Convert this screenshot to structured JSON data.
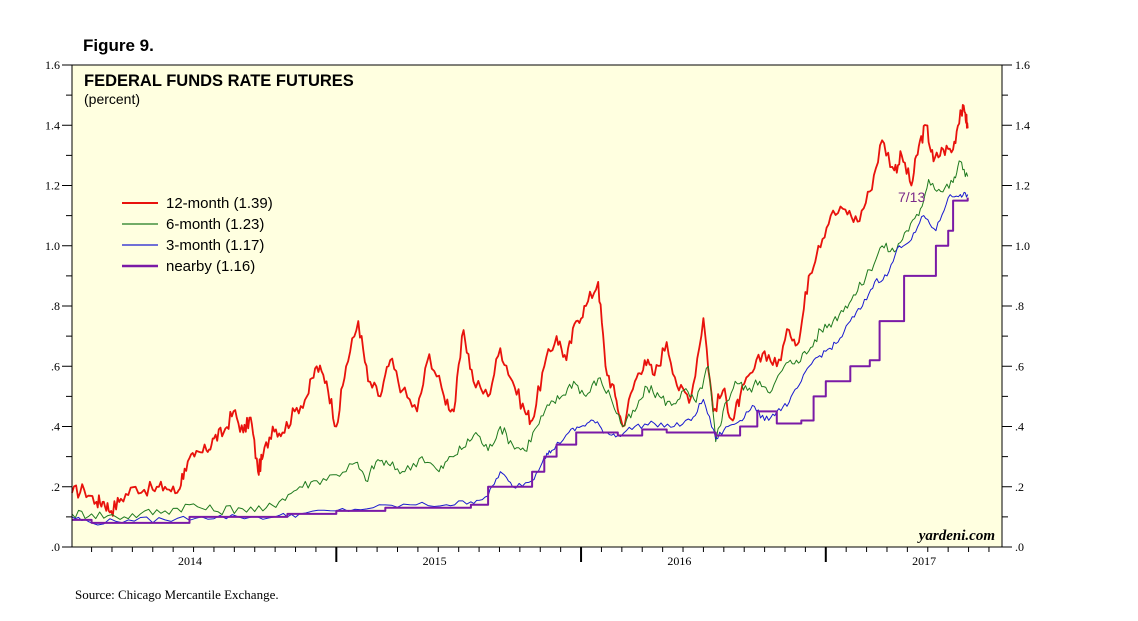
{
  "figure_label": "Figure 9.",
  "source": "Source: Chicago Mercantile Exchange.",
  "chart_data": {
    "type": "line",
    "title": "FEDERAL FUNDS RATE FUTURES",
    "subtitle": "(percent)",
    "xlabel": "",
    "ylabel": "percent",
    "xlim": [
      2013.92,
      2017.72
    ],
    "ylim": [
      0,
      1.6
    ],
    "x_tick_labels": [
      "2014",
      "2015",
      "2016",
      "2017"
    ],
    "x_tick_positions": [
      2014.5,
      2015.5,
      2016.5,
      2017.5
    ],
    "y_ticks": [
      0,
      0.2,
      0.4,
      0.6,
      0.8,
      1.0,
      1.2,
      1.4,
      1.6
    ],
    "y_tick_labels": [
      ".0",
      ".2",
      ".4",
      ".6",
      ".8",
      "1.0",
      "1.2",
      "1.4",
      "1.6"
    ],
    "plot_background": "#ffffe0",
    "watermark": "yardeni.com",
    "end_annotation": {
      "text": "7/13",
      "color": "#7a2a8a"
    },
    "legend_position": "upper-left",
    "series": [
      {
        "name": "12-month (1.39)",
        "color": "#e8120c",
        "points": [
          [
            2013.92,
            0.18
          ],
          [
            2013.97,
            0.19
          ],
          [
            2014.02,
            0.15
          ],
          [
            2014.05,
            0.15
          ],
          [
            2014.08,
            0.12
          ],
          [
            2014.12,
            0.16
          ],
          [
            2014.18,
            0.2
          ],
          [
            2014.25,
            0.19
          ],
          [
            2014.3,
            0.2
          ],
          [
            2014.35,
            0.18
          ],
          [
            2014.38,
            0.26
          ],
          [
            2014.42,
            0.3
          ],
          [
            2014.47,
            0.32
          ],
          [
            2014.5,
            0.36
          ],
          [
            2014.54,
            0.38
          ],
          [
            2014.58,
            0.45
          ],
          [
            2014.62,
            0.38
          ],
          [
            2014.65,
            0.43
          ],
          [
            2014.68,
            0.25
          ],
          [
            2014.7,
            0.3
          ],
          [
            2014.74,
            0.4
          ],
          [
            2014.78,
            0.38
          ],
          [
            2014.83,
            0.45
          ],
          [
            2014.88,
            0.5
          ],
          [
            2014.92,
            0.6
          ],
          [
            2014.96,
            0.55
          ],
          [
            2015.0,
            0.4
          ],
          [
            2015.04,
            0.6
          ],
          [
            2015.09,
            0.75
          ],
          [
            2015.13,
            0.55
          ],
          [
            2015.18,
            0.5
          ],
          [
            2015.22,
            0.62
          ],
          [
            2015.27,
            0.52
          ],
          [
            2015.33,
            0.45
          ],
          [
            2015.38,
            0.64
          ],
          [
            2015.44,
            0.5
          ],
          [
            2015.48,
            0.45
          ],
          [
            2015.52,
            0.72
          ],
          [
            2015.56,
            0.55
          ],
          [
            2015.62,
            0.5
          ],
          [
            2015.67,
            0.66
          ],
          [
            2015.72,
            0.55
          ],
          [
            2015.77,
            0.45
          ],
          [
            2015.8,
            0.42
          ],
          [
            2015.85,
            0.6
          ],
          [
            2015.9,
            0.7
          ],
          [
            2015.94,
            0.62
          ],
          [
            2015.98,
            0.75
          ],
          [
            2016.02,
            0.8
          ],
          [
            2016.07,
            0.88
          ],
          [
            2016.1,
            0.6
          ],
          [
            2016.14,
            0.5
          ],
          [
            2016.17,
            0.4
          ],
          [
            2016.22,
            0.55
          ],
          [
            2016.26,
            0.62
          ],
          [
            2016.3,
            0.57
          ],
          [
            2016.35,
            0.68
          ],
          [
            2016.4,
            0.52
          ],
          [
            2016.45,
            0.5
          ],
          [
            2016.5,
            0.76
          ],
          [
            2016.54,
            0.45
          ],
          [
            2016.58,
            0.52
          ],
          [
            2016.62,
            0.42
          ],
          [
            2016.65,
            0.5
          ],
          [
            2016.7,
            0.58
          ],
          [
            2016.75,
            0.65
          ],
          [
            2016.8,
            0.6
          ],
          [
            2016.85,
            0.72
          ],
          [
            2016.89,
            0.68
          ],
          [
            2016.93,
            0.9
          ],
          [
            2016.97,
            1.0
          ],
          [
            2017.02,
            1.1
          ],
          [
            2017.08,
            1.12
          ],
          [
            2017.13,
            1.08
          ],
          [
            2017.18,
            1.18
          ],
          [
            2017.23,
            1.35
          ],
          [
            2017.28,
            1.25
          ],
          [
            2017.31,
            1.3
          ],
          [
            2017.35,
            1.2
          ],
          [
            2017.38,
            1.33
          ],
          [
            2017.41,
            1.4
          ],
          [
            2017.44,
            1.28
          ],
          [
            2017.48,
            1.32
          ],
          [
            2017.52,
            1.32
          ],
          [
            2017.55,
            1.45
          ],
          [
            2017.57,
            1.44
          ],
          [
            2017.58,
            1.39
          ]
        ]
      },
      {
        "name": "6-month (1.23)",
        "color": "#1f7a1f",
        "points": [
          [
            2013.92,
            0.11
          ],
          [
            2014.0,
            0.11
          ],
          [
            2014.1,
            0.1
          ],
          [
            2014.2,
            0.11
          ],
          [
            2014.3,
            0.12
          ],
          [
            2014.4,
            0.14
          ],
          [
            2014.5,
            0.12
          ],
          [
            2014.6,
            0.13
          ],
          [
            2014.7,
            0.12
          ],
          [
            2014.78,
            0.16
          ],
          [
            2014.85,
            0.2
          ],
          [
            2014.92,
            0.22
          ],
          [
            2015.0,
            0.24
          ],
          [
            2015.08,
            0.28
          ],
          [
            2015.12,
            0.22
          ],
          [
            2015.17,
            0.29
          ],
          [
            2015.22,
            0.27
          ],
          [
            2015.28,
            0.25
          ],
          [
            2015.35,
            0.3
          ],
          [
            2015.42,
            0.25
          ],
          [
            2015.47,
            0.3
          ],
          [
            2015.52,
            0.33
          ],
          [
            2015.57,
            0.38
          ],
          [
            2015.62,
            0.32
          ],
          [
            2015.67,
            0.4
          ],
          [
            2015.72,
            0.34
          ],
          [
            2015.77,
            0.32
          ],
          [
            2015.82,
            0.4
          ],
          [
            2015.87,
            0.47
          ],
          [
            2015.92,
            0.5
          ],
          [
            2015.97,
            0.55
          ],
          [
            2016.02,
            0.5
          ],
          [
            2016.07,
            0.56
          ],
          [
            2016.12,
            0.5
          ],
          [
            2016.17,
            0.4
          ],
          [
            2016.22,
            0.45
          ],
          [
            2016.27,
            0.53
          ],
          [
            2016.32,
            0.5
          ],
          [
            2016.37,
            0.47
          ],
          [
            2016.42,
            0.52
          ],
          [
            2016.47,
            0.48
          ],
          [
            2016.52,
            0.6
          ],
          [
            2016.55,
            0.35
          ],
          [
            2016.58,
            0.45
          ],
          [
            2016.63,
            0.55
          ],
          [
            2016.68,
            0.52
          ],
          [
            2016.73,
            0.55
          ],
          [
            2016.78,
            0.52
          ],
          [
            2016.83,
            0.6
          ],
          [
            2016.88,
            0.62
          ],
          [
            2016.93,
            0.65
          ],
          [
            2016.98,
            0.72
          ],
          [
            2017.03,
            0.75
          ],
          [
            2017.08,
            0.8
          ],
          [
            2017.13,
            0.85
          ],
          [
            2017.18,
            0.92
          ],
          [
            2017.23,
            1.0
          ],
          [
            2017.28,
            0.98
          ],
          [
            2017.33,
            1.05
          ],
          [
            2017.38,
            1.1
          ],
          [
            2017.42,
            1.22
          ],
          [
            2017.47,
            1.18
          ],
          [
            2017.52,
            1.21
          ],
          [
            2017.55,
            1.28
          ],
          [
            2017.58,
            1.23
          ]
        ]
      },
      {
        "name": "3-month (1.17)",
        "color": "#1a1ad0",
        "points": [
          [
            2013.92,
            0.1
          ],
          [
            2014.0,
            0.08
          ],
          [
            2014.15,
            0.09
          ],
          [
            2014.3,
            0.09
          ],
          [
            2014.45,
            0.1
          ],
          [
            2014.6,
            0.1
          ],
          [
            2014.75,
            0.1
          ],
          [
            2014.85,
            0.11
          ],
          [
            2015.0,
            0.12
          ],
          [
            2015.15,
            0.13
          ],
          [
            2015.3,
            0.14
          ],
          [
            2015.45,
            0.14
          ],
          [
            2015.55,
            0.15
          ],
          [
            2015.62,
            0.17
          ],
          [
            2015.67,
            0.25
          ],
          [
            2015.72,
            0.2
          ],
          [
            2015.8,
            0.22
          ],
          [
            2015.85,
            0.3
          ],
          [
            2015.88,
            0.32
          ],
          [
            2015.95,
            0.38
          ],
          [
            2016.0,
            0.4
          ],
          [
            2016.05,
            0.42
          ],
          [
            2016.1,
            0.38
          ],
          [
            2016.15,
            0.37
          ],
          [
            2016.22,
            0.4
          ],
          [
            2016.3,
            0.41
          ],
          [
            2016.38,
            0.4
          ],
          [
            2016.45,
            0.42
          ],
          [
            2016.5,
            0.49
          ],
          [
            2016.55,
            0.36
          ],
          [
            2016.6,
            0.4
          ],
          [
            2016.65,
            0.42
          ],
          [
            2016.7,
            0.47
          ],
          [
            2016.75,
            0.42
          ],
          [
            2016.8,
            0.45
          ],
          [
            2016.85,
            0.48
          ],
          [
            2016.9,
            0.55
          ],
          [
            2016.95,
            0.62
          ],
          [
            2017.0,
            0.65
          ],
          [
            2017.05,
            0.68
          ],
          [
            2017.1,
            0.75
          ],
          [
            2017.15,
            0.8
          ],
          [
            2017.2,
            0.88
          ],
          [
            2017.25,
            0.9
          ],
          [
            2017.3,
            1.0
          ],
          [
            2017.35,
            1.02
          ],
          [
            2017.4,
            1.1
          ],
          [
            2017.45,
            1.05
          ],
          [
            2017.5,
            1.16
          ],
          [
            2017.55,
            1.17
          ],
          [
            2017.58,
            1.17
          ]
        ]
      },
      {
        "name": "nearby (1.16)",
        "color": "#7a1aa6",
        "points": [
          [
            2013.92,
            0.09
          ],
          [
            2014.0,
            0.08
          ],
          [
            2014.2,
            0.08
          ],
          [
            2014.4,
            0.1
          ],
          [
            2014.6,
            0.1
          ],
          [
            2014.8,
            0.11
          ],
          [
            2015.0,
            0.12
          ],
          [
            2015.2,
            0.13
          ],
          [
            2015.4,
            0.13
          ],
          [
            2015.55,
            0.14
          ],
          [
            2015.62,
            0.2
          ],
          [
            2015.72,
            0.2
          ],
          [
            2015.8,
            0.25
          ],
          [
            2015.85,
            0.3
          ],
          [
            2015.9,
            0.34
          ],
          [
            2015.98,
            0.38
          ],
          [
            2016.05,
            0.38
          ],
          [
            2016.15,
            0.37
          ],
          [
            2016.25,
            0.39
          ],
          [
            2016.35,
            0.38
          ],
          [
            2016.45,
            0.38
          ],
          [
            2016.55,
            0.37
          ],
          [
            2016.65,
            0.4
          ],
          [
            2016.72,
            0.45
          ],
          [
            2016.8,
            0.41
          ],
          [
            2016.9,
            0.42
          ],
          [
            2016.95,
            0.5
          ],
          [
            2017.0,
            0.55
          ],
          [
            2017.05,
            0.55
          ],
          [
            2017.1,
            0.6
          ],
          [
            2017.18,
            0.62
          ],
          [
            2017.22,
            0.75
          ],
          [
            2017.3,
            0.75
          ],
          [
            2017.32,
            0.9
          ],
          [
            2017.4,
            0.9
          ],
          [
            2017.45,
            1.0
          ],
          [
            2017.5,
            1.05
          ],
          [
            2017.52,
            1.15
          ],
          [
            2017.58,
            1.16
          ]
        ]
      }
    ]
  }
}
